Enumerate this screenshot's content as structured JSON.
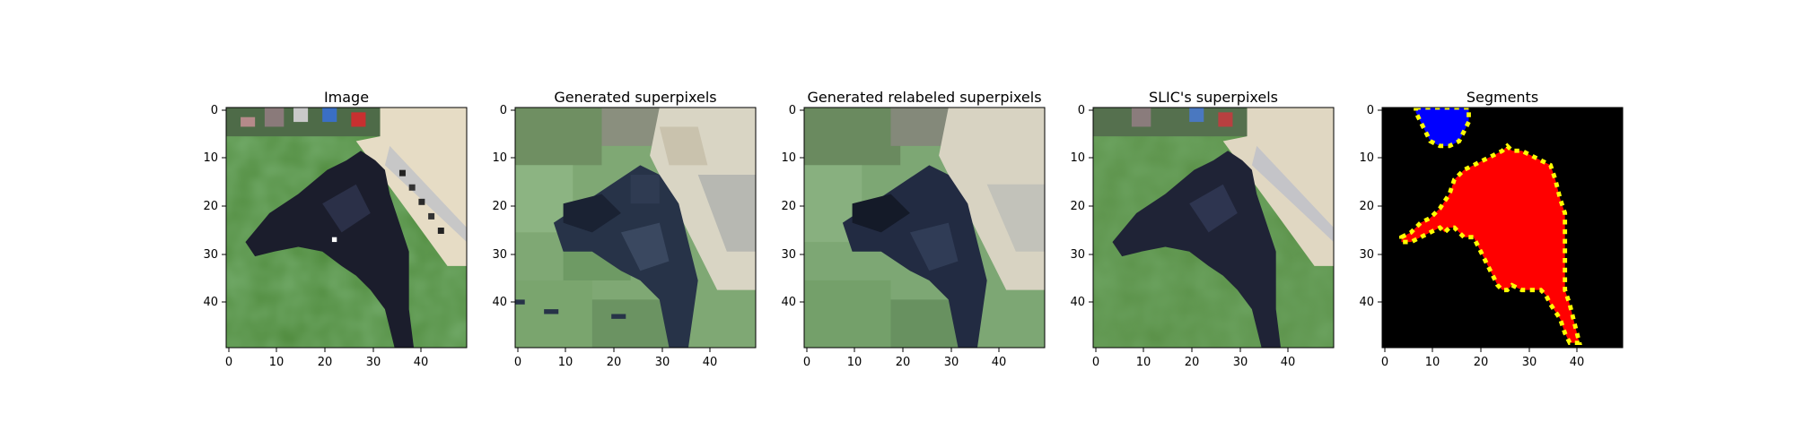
{
  "chart_data": [
    {
      "type": "image",
      "title": "Image",
      "content": "photo-grass-dog",
      "xticks": [
        0,
        10,
        20,
        30,
        40
      ],
      "yticks": [
        0,
        10,
        20,
        30,
        40
      ],
      "xlim": [
        -0.5,
        49.5
      ],
      "ylim": [
        49.5,
        -0.5
      ]
    },
    {
      "type": "image",
      "title": "Generated superpixels",
      "content": "superpixels-generated",
      "xticks": [
        0,
        10,
        20,
        30,
        40
      ],
      "yticks": [
        0,
        10,
        20,
        30,
        40
      ],
      "xlim": [
        -0.5,
        49.5
      ],
      "ylim": [
        49.5,
        -0.5
      ]
    },
    {
      "type": "image",
      "title": "Generated relabeled superpixels",
      "content": "superpixels-relabeled",
      "xticks": [
        0,
        10,
        20,
        30,
        40
      ],
      "yticks": [
        0,
        10,
        20,
        30,
        40
      ],
      "xlim": [
        -0.5,
        49.5
      ],
      "ylim": [
        49.5,
        -0.5
      ]
    },
    {
      "type": "image",
      "title": "SLIC's superpixels",
      "content": "superpixels-slic",
      "xticks": [
        0,
        10,
        20,
        30,
        40
      ],
      "yticks": [
        0,
        10,
        20,
        30,
        40
      ],
      "xlim": [
        -0.5,
        49.5
      ],
      "ylim": [
        49.5,
        -0.5
      ]
    },
    {
      "type": "image",
      "title": "Segments",
      "content": "segment-mask",
      "xticks": [
        0,
        10,
        20,
        30,
        40
      ],
      "yticks": [
        0,
        10,
        20,
        30,
        40
      ],
      "xlim": [
        -0.5,
        49.5
      ],
      "ylim": [
        49.5,
        -0.5
      ],
      "colors": {
        "background": "#000000",
        "segment_1": "#0000ff",
        "segment_2": "#ff0000",
        "boundary": "#ffff00"
      }
    }
  ]
}
